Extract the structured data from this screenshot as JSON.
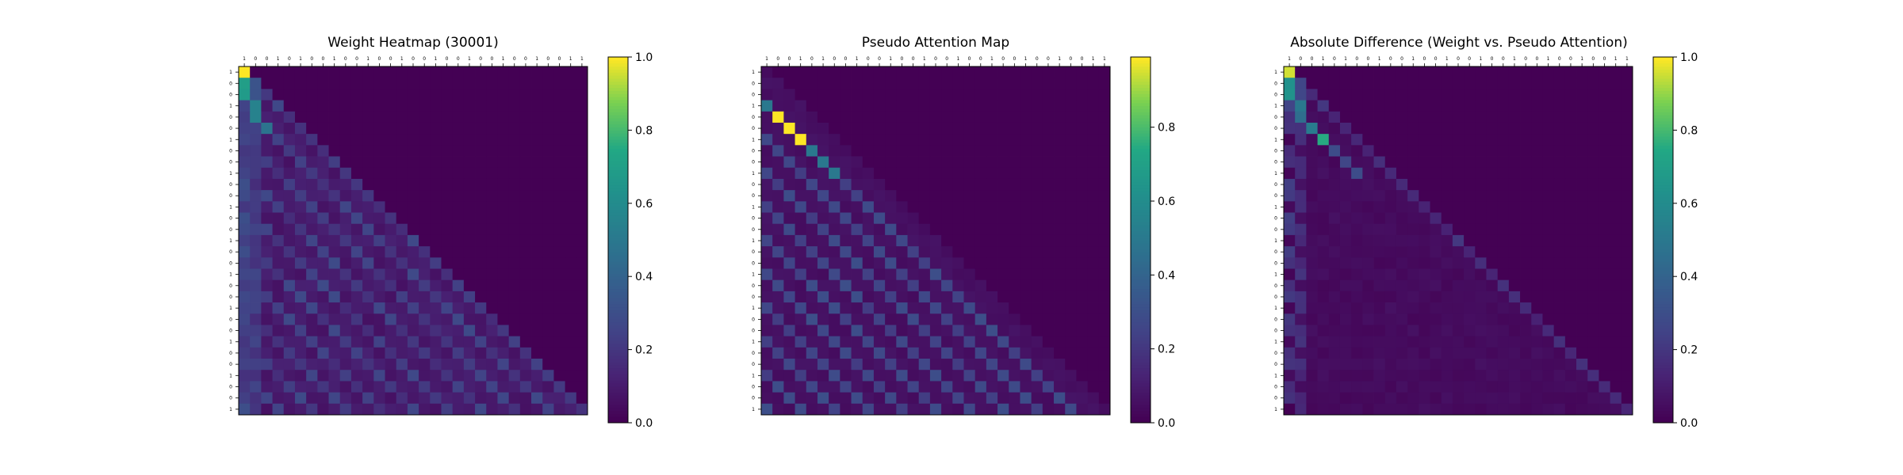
{
  "chart_data": [
    {
      "type": "heatmap",
      "title": "Weight Heatmap (30001)",
      "colormap": "viridis",
      "vmin": 0,
      "vmax": 1,
      "colorbar_ticks": [
        "0.0",
        "0.2",
        "0.4",
        "0.6",
        "0.8",
        "1.0"
      ],
      "x_tick_labels": [
        "1",
        "0",
        "0",
        "1",
        "0",
        "1",
        "0",
        "0",
        "1",
        "0",
        "0",
        "1",
        "0",
        "0",
        "1",
        "0",
        "0",
        "1",
        "0",
        "0",
        "1",
        "0",
        "0",
        "1",
        "0",
        "0",
        "1",
        "0",
        "0",
        "1",
        "1"
      ],
      "y_tick_labels": [
        "1",
        "0",
        "0",
        "1",
        "0",
        "0",
        "1",
        "0",
        "0",
        "1",
        "0",
        "0",
        "1",
        "0",
        "0",
        "1",
        "0",
        "0",
        "1",
        "0",
        "0",
        "1",
        "0",
        "0",
        "1",
        "0",
        "0",
        "1",
        "0",
        "0",
        "1"
      ],
      "pattern": "weight"
    },
    {
      "type": "heatmap",
      "title": "Pseudo Attention Map",
      "colormap": "viridis",
      "vmin": 0,
      "vmax": 1,
      "colorbar_ticks": [
        "0.0",
        "0.2",
        "0.4",
        "0.6",
        "0.8"
      ],
      "x_tick_labels": [
        "1",
        "0",
        "0",
        "1",
        "0",
        "1",
        "0",
        "0",
        "1",
        "0",
        "0",
        "1",
        "0",
        "0",
        "1",
        "0",
        "0",
        "1",
        "0",
        "0",
        "1",
        "0",
        "0",
        "1",
        "0",
        "0",
        "1",
        "0",
        "0",
        "1",
        "1"
      ],
      "y_tick_labels": [
        "1",
        "0",
        "0",
        "1",
        "0",
        "0",
        "1",
        "0",
        "0",
        "1",
        "0",
        "0",
        "1",
        "0",
        "0",
        "1",
        "0",
        "0",
        "1",
        "0",
        "0",
        "1",
        "0",
        "0",
        "1",
        "0",
        "0",
        "1",
        "0",
        "0",
        "1"
      ],
      "pattern": "pseudo"
    },
    {
      "type": "heatmap",
      "title": "Absolute Difference (Weight vs. Pseudo Attention)",
      "colormap": "viridis",
      "vmin": 0,
      "vmax": 1,
      "colorbar_ticks": [
        "0.0",
        "0.2",
        "0.4",
        "0.6",
        "0.8",
        "1.0"
      ],
      "x_tick_labels": [
        "1",
        "0",
        "0",
        "1",
        "0",
        "1",
        "0",
        "0",
        "1",
        "0",
        "0",
        "1",
        "0",
        "0",
        "1",
        "0",
        "0",
        "1",
        "0",
        "0",
        "1",
        "0",
        "0",
        "1",
        "0",
        "0",
        "1",
        "0",
        "0",
        "1",
        "1"
      ],
      "y_tick_labels": [
        "1",
        "0",
        "0",
        "1",
        "0",
        "0",
        "1",
        "0",
        "0",
        "1",
        "0",
        "0",
        "1",
        "0",
        "0",
        "1",
        "0",
        "0",
        "1",
        "0",
        "0",
        "1",
        "0",
        "0",
        "1",
        "0",
        "0",
        "1",
        "0",
        "0",
        "1"
      ],
      "pattern": "diff"
    }
  ]
}
